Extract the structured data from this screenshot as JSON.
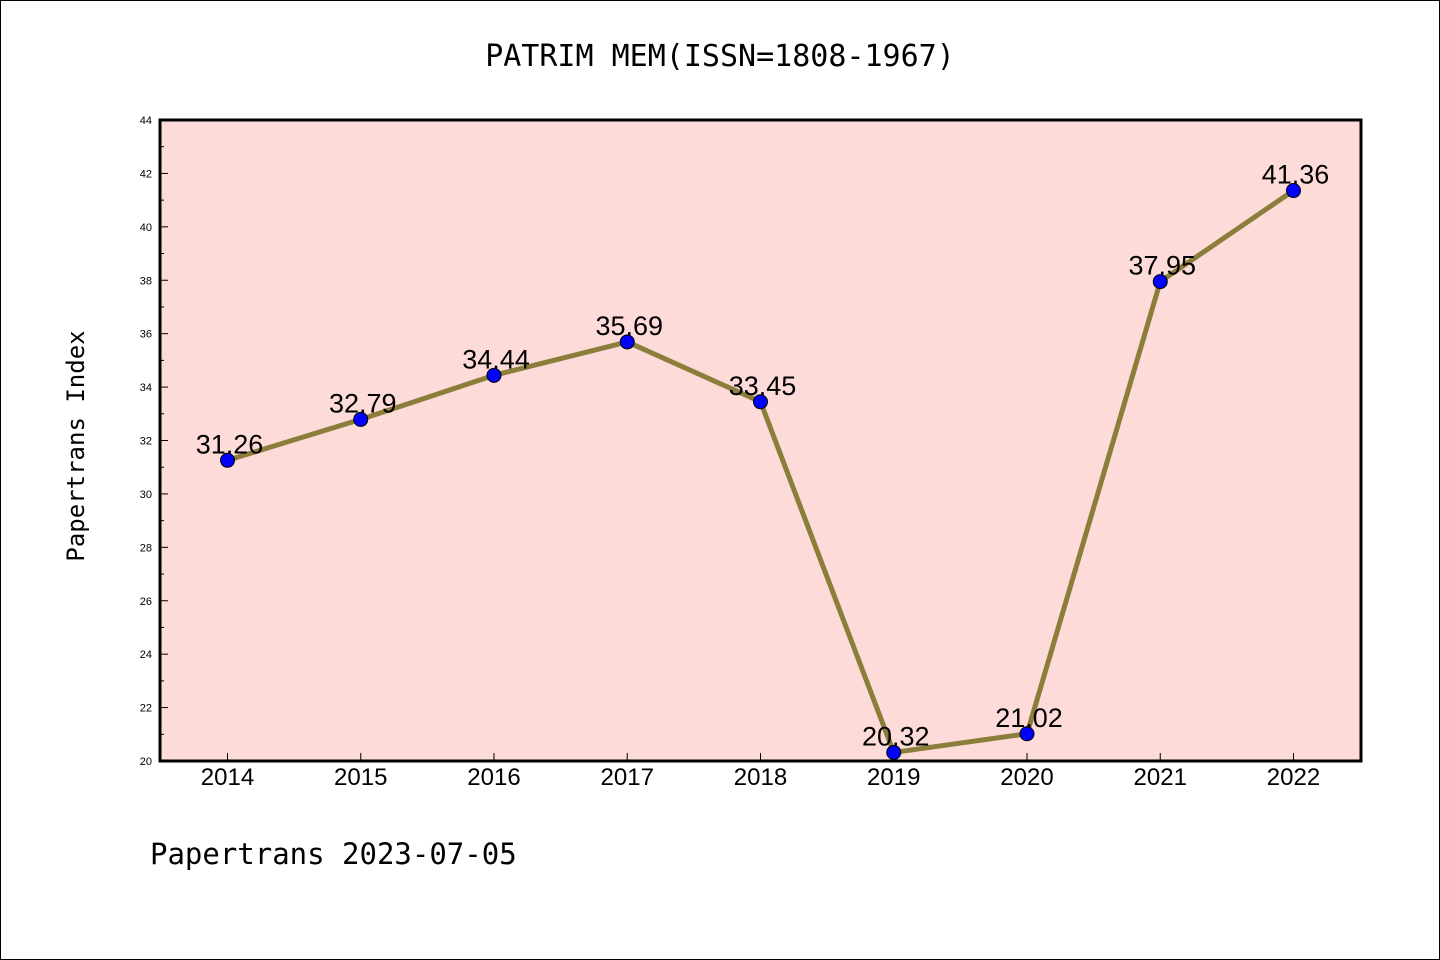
{
  "chart_data": {
    "type": "line",
    "title": "PATRIM MEM(ISSN=1808-1967)",
    "xlabel": "",
    "ylabel": "Papertrans Index",
    "categories": [
      "2014",
      "2015",
      "2016",
      "2017",
      "2018",
      "2019",
      "2020",
      "2021",
      "2022"
    ],
    "values": [
      31.26,
      32.79,
      34.44,
      35.69,
      33.45,
      20.32,
      21.02,
      37.95,
      41.36
    ],
    "data_labels": [
      "31.26",
      "32.79",
      "34.44",
      "35.69",
      "33.45",
      "20.32",
      "21.02",
      "37.95",
      "41.36"
    ],
    "ylim": [
      20,
      44
    ],
    "yticks": [
      20,
      22,
      24,
      26,
      28,
      30,
      32,
      34,
      36,
      38,
      40,
      42,
      44
    ],
    "grid": false,
    "colors": {
      "plot_background": "#fddbd9",
      "line": "#8b7d3a",
      "marker": "#0000ff"
    }
  },
  "footer": "Papertrans 2023-07-05"
}
